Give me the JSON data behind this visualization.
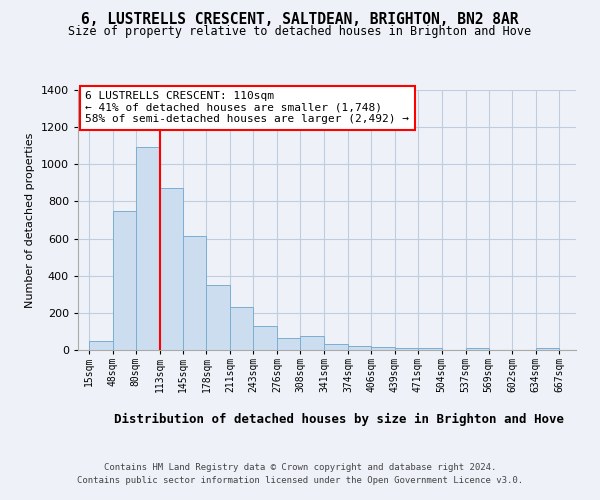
{
  "title_line1": "6, LUSTRELLS CRESCENT, SALTDEAN, BRIGHTON, BN2 8AR",
  "title_line2": "Size of property relative to detached houses in Brighton and Hove",
  "xlabel": "Distribution of detached houses by size in Brighton and Hove",
  "ylabel": "Number of detached properties",
  "bar_left_edges": [
    15,
    48,
    80,
    113,
    145,
    178,
    211,
    243,
    276,
    308,
    341,
    374,
    406,
    439,
    471,
    504,
    537,
    569,
    602,
    634
  ],
  "bar_widths": [
    33,
    32,
    33,
    32,
    33,
    33,
    32,
    33,
    32,
    33,
    33,
    32,
    33,
    32,
    33,
    33,
    32,
    33,
    32,
    33
  ],
  "bar_heights": [
    50,
    750,
    1095,
    870,
    615,
    350,
    230,
    130,
    65,
    75,
    30,
    20,
    15,
    10,
    12,
    0,
    10,
    0,
    0,
    10
  ],
  "bar_color": "#ccddf0",
  "bar_edge_color": "#7aaed0",
  "tick_labels": [
    "15sqm",
    "48sqm",
    "80sqm",
    "113sqm",
    "145sqm",
    "178sqm",
    "211sqm",
    "243sqm",
    "276sqm",
    "308sqm",
    "341sqm",
    "374sqm",
    "406sqm",
    "439sqm",
    "471sqm",
    "504sqm",
    "537sqm",
    "569sqm",
    "602sqm",
    "634sqm",
    "667sqm"
  ],
  "tick_positions": [
    15,
    48,
    80,
    113,
    145,
    178,
    211,
    243,
    276,
    308,
    341,
    374,
    406,
    439,
    471,
    504,
    537,
    569,
    602,
    634,
    667
  ],
  "ylim": [
    0,
    1400
  ],
  "xlim": [
    0,
    690
  ],
  "red_line_x": 113,
  "annotation_title": "6 LUSTRELLS CRESCENT: 110sqm",
  "annotation_line1": "← 41% of detached houses are smaller (1,748)",
  "annotation_line2": "58% of semi-detached houses are larger (2,492) →",
  "footer_line1": "Contains HM Land Registry data © Crown copyright and database right 2024.",
  "footer_line2": "Contains public sector information licensed under the Open Government Licence v3.0.",
  "background_color": "#eef2f8",
  "plot_bg_color": "#eef2f8",
  "grid_color": "#c0cce0"
}
